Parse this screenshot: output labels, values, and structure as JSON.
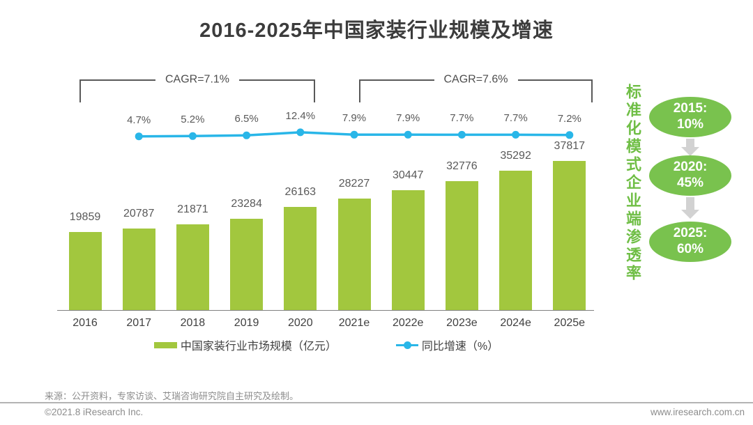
{
  "title": "2016-2025年中国家装行业规模及增速",
  "chart_data": {
    "type": "bar",
    "categories": [
      "2016",
      "2017",
      "2018",
      "2019",
      "2020",
      "2021e",
      "2022e",
      "2023e",
      "2024e",
      "2025e"
    ],
    "series": [
      {
        "name": "中国家装行业市场规模（亿元）",
        "type": "bar",
        "values": [
          19859,
          20787,
          21871,
          23284,
          26163,
          28227,
          30447,
          32776,
          35292,
          37817
        ]
      },
      {
        "name": "同比增速（%）",
        "type": "line",
        "start_category_index": 1,
        "values": [
          4.7,
          5.2,
          6.5,
          12.4,
          7.9,
          7.9,
          7.7,
          7.7,
          7.2
        ]
      }
    ],
    "annotations": [
      {
        "label": "CAGR=7.1%",
        "span_categories": [
          "2016",
          "2020"
        ]
      },
      {
        "label": "CAGR=7.6%",
        "span_categories": [
          "2021e",
          "2025e"
        ]
      }
    ],
    "legend_position": "bottom",
    "grid": false,
    "colors": {
      "bar": "#a2c73e",
      "line": "#29b6e8"
    }
  },
  "side_panel": {
    "vertical_label": "标准化模式企业端渗透率",
    "nodes": [
      {
        "line1": "2015:",
        "line2": "10%"
      },
      {
        "line1": "2020:",
        "line2": "45%"
      },
      {
        "line1": "2025:",
        "line2": "60%"
      }
    ],
    "node_color": "#79c24e",
    "arrow_color": "#d2d2d2"
  },
  "footer": {
    "source": "来源：公开资料，专家访谈、艾瑞咨询研究院自主研究及绘制。",
    "copyright": "©2021.8 iResearch Inc.",
    "url": "www.iresearch.com.cn"
  }
}
